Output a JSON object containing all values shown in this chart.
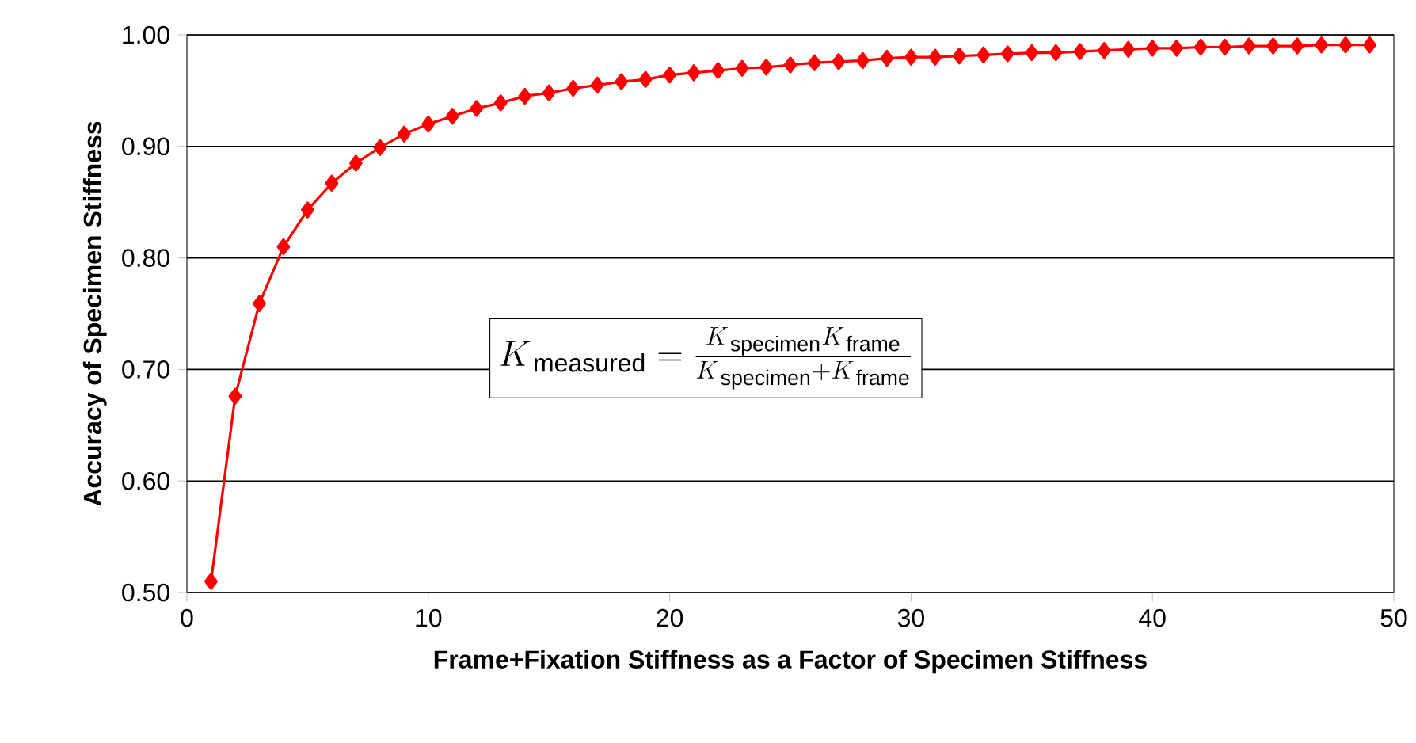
{
  "chart_data": {
    "type": "line",
    "xlabel": "Frame+Fixation Stiffness as a Factor of Specimen Stiffness",
    "ylabel": "Accuracy of Specimen Stiffness",
    "x": [
      1,
      2,
      3,
      4,
      5,
      6,
      7,
      8,
      9,
      10,
      11,
      12,
      13,
      14,
      15,
      16,
      17,
      18,
      19,
      20,
      21,
      22,
      23,
      24,
      25,
      26,
      27,
      28,
      29,
      30,
      31,
      32,
      33,
      34,
      35,
      36,
      37,
      38,
      39,
      40,
      41,
      42,
      43,
      44,
      45,
      46,
      47,
      48,
      49
    ],
    "values": [
      0.51,
      0.676,
      0.759,
      0.81,
      0.843,
      0.867,
      0.885,
      0.899,
      0.911,
      0.92,
      0.927,
      0.934,
      0.939,
      0.945,
      0.948,
      0.952,
      0.955,
      0.958,
      0.96,
      0.964,
      0.966,
      0.968,
      0.97,
      0.971,
      0.973,
      0.975,
      0.976,
      0.977,
      0.979,
      0.98,
      0.98,
      0.981,
      0.982,
      0.983,
      0.984,
      0.984,
      0.985,
      0.986,
      0.987,
      0.988,
      0.988,
      0.989,
      0.989,
      0.99,
      0.99,
      0.99,
      0.991,
      0.991,
      0.991
    ],
    "color": "#ff0000",
    "marker": "diamond",
    "line_style": "solid",
    "grid": "y",
    "xlim": [
      0,
      50
    ],
    "xticks": [
      0,
      10,
      20,
      30,
      40,
      50
    ],
    "ylim": [
      0.5,
      1.0
    ],
    "yticks": [
      {
        "value": 0.5,
        "label": "0.50"
      },
      {
        "value": 0.6,
        "label": "0.60"
      },
      {
        "value": 0.7,
        "label": "0.70"
      },
      {
        "value": 0.8,
        "label": "0.80"
      },
      {
        "value": 0.9,
        "label": "0.90"
      },
      {
        "value": 1.0,
        "label": "1.00"
      }
    ],
    "annotations": [
      "K_{\\,\\mathrm{measured}} = \\frac{K_{\\,\\mathrm{specimen}}K_{\\,\\mathrm{frame}}}{K_{\\,\\mathrm{specimen}}+K_{\\,\\mathrm{frame}}}"
    ]
  }
}
